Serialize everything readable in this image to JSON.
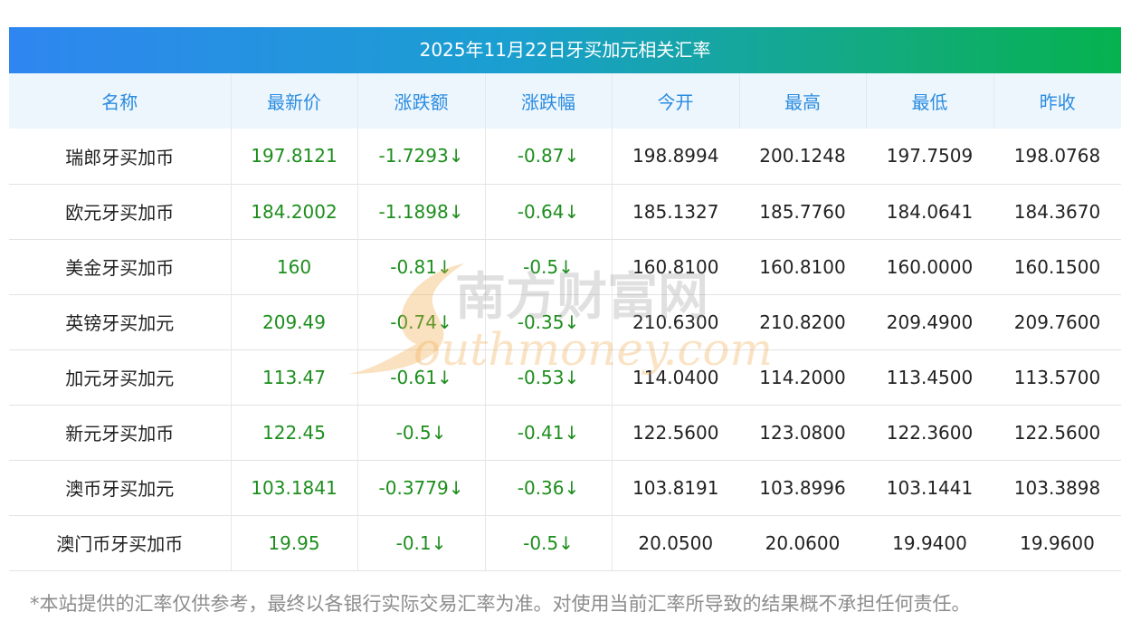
{
  "title": "2025年11月22日牙买加元相关汇率",
  "columns": [
    "名称",
    "最新价",
    "涨跌额",
    "涨跌幅",
    "今开",
    "最高",
    "最低",
    "昨收"
  ],
  "rows": [
    {
      "name": "瑞郎牙买加币",
      "latest": "197.8121",
      "change": "-1.7293↓",
      "change_pct": "-0.87↓",
      "open": "198.8994",
      "high": "200.1248",
      "low": "197.7509",
      "prev_close": "198.0768"
    },
    {
      "name": "欧元牙买加币",
      "latest": "184.2002",
      "change": "-1.1898↓",
      "change_pct": "-0.64↓",
      "open": "185.1327",
      "high": "185.7760",
      "low": "184.0641",
      "prev_close": "184.3670"
    },
    {
      "name": "美金牙买加币",
      "latest": "160",
      "change": "-0.81↓",
      "change_pct": "-0.5↓",
      "open": "160.8100",
      "high": "160.8100",
      "low": "160.0000",
      "prev_close": "160.1500"
    },
    {
      "name": "英镑牙买加元",
      "latest": "209.49",
      "change": "-0.74↓",
      "change_pct": "-0.35↓",
      "open": "210.6300",
      "high": "210.8200",
      "low": "209.4900",
      "prev_close": "209.7600"
    },
    {
      "name": "加元牙买加元",
      "latest": "113.47",
      "change": "-0.61↓",
      "change_pct": "-0.53↓",
      "open": "114.0400",
      "high": "114.2000",
      "low": "113.4500",
      "prev_close": "113.5700"
    },
    {
      "name": "新元牙买加币",
      "latest": "122.45",
      "change": "-0.5↓",
      "change_pct": "-0.41↓",
      "open": "122.5600",
      "high": "123.0800",
      "low": "122.3600",
      "prev_close": "122.5600"
    },
    {
      "name": "澳币牙买加元",
      "latest": "103.1841",
      "change": "-0.3779↓",
      "change_pct": "-0.36↓",
      "open": "103.8191",
      "high": "103.8996",
      "low": "103.1441",
      "prev_close": "103.3898"
    },
    {
      "name": "澳门币牙买加币",
      "latest": "19.95",
      "change": "-0.1↓",
      "change_pct": "-0.5↓",
      "open": "20.0500",
      "high": "20.0600",
      "low": "19.9400",
      "prev_close": "19.9600"
    }
  ],
  "watermark": {
    "cn": "南方财富网",
    "en": "outhmoney.com"
  },
  "disclaimer": "*本站提供的汇率仅供参考，最终以各银行实际交易汇率为准。对使用当前汇率所导致的结果概不承担任何责任。",
  "colors": {
    "header_text": "#2a8ce0",
    "up_down": "#1d8e1d",
    "title_start": "#2f86f0",
    "title_end": "#05b24f"
  }
}
